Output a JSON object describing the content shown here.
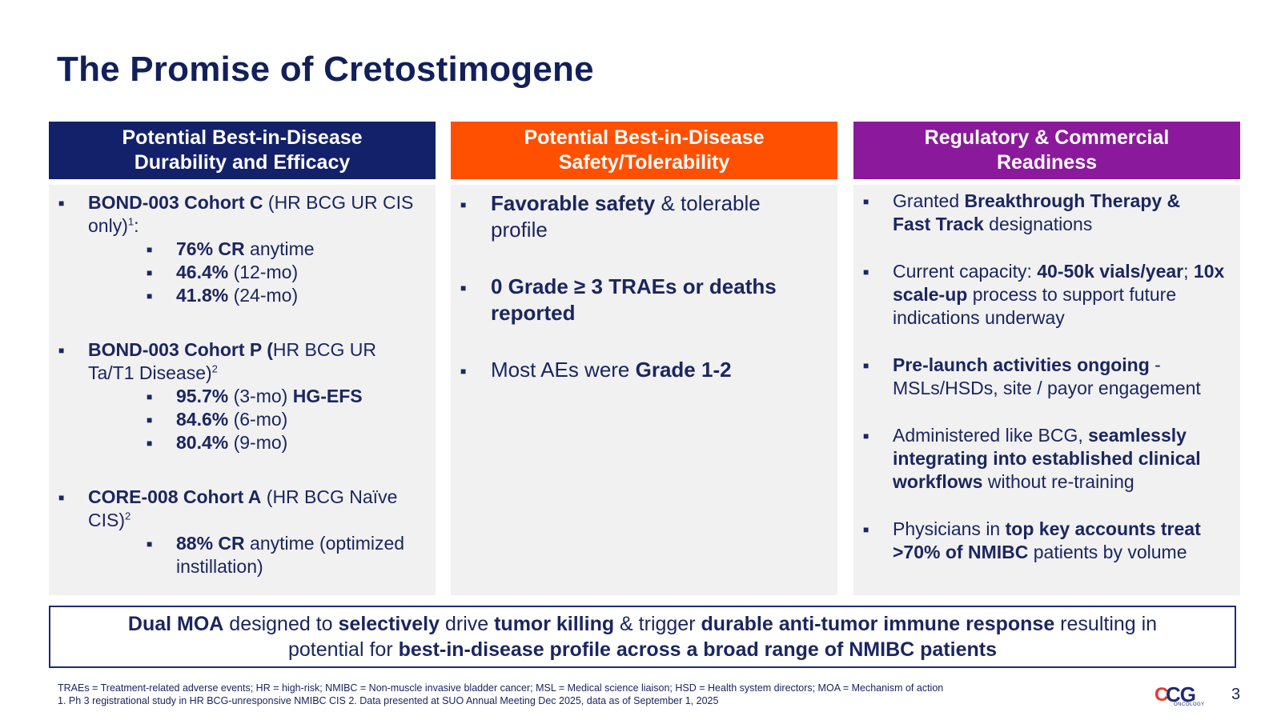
{
  "slide": {
    "title": "The Promise of Cretostimogene",
    "page_number": "3"
  },
  "colors": {
    "title": "#12205a",
    "header_navy": "#13216a",
    "header_orange": "#fe5000",
    "header_purple": "#8a1a9b",
    "panel_bg": "#f1f1f1",
    "text": "#1b2660"
  },
  "bullet_glyph": "■",
  "columns": [
    {
      "header_line1": "Potential Best-in-Disease",
      "header_line2": "Durability and Efficacy",
      "items": [
        {
          "bold": "BOND-003 Cohort C",
          "text": " (HR BCG UR CIS only)",
          "sup": "1",
          "tail": ":",
          "subs": [
            {
              "bold": "76% CR",
              "text": " anytime"
            },
            {
              "bold": "46.4%",
              "text": " (12-mo)"
            },
            {
              "bold": "41.8%",
              "text": " (24-mo)"
            }
          ]
        },
        {
          "bold": "BOND-003 Cohort P (",
          "text": "HR BCG UR Ta/T1 Disease)",
          "sup": "2",
          "subs": [
            {
              "bold": "95.7%",
              "text": " (3-mo) ",
              "bold2": "HG-EFS"
            },
            {
              "bold": "84.6%",
              "text": " (6-mo)"
            },
            {
              "bold": "80.4%",
              "text": " (9-mo)"
            }
          ]
        },
        {
          "bold": "CORE-008 Cohort A",
          "text": " (HR BCG Naïve CIS)",
          "sup": "2",
          "subs": [
            {
              "bold": "88% CR",
              "text": " anytime (optimized instillation)"
            }
          ]
        }
      ]
    },
    {
      "header_line1": "Potential Best-in-Disease",
      "header_line2": "Safety/Tolerability",
      "items": [
        {
          "bold": "Favorable safety",
          "text": " & tolerable profile"
        },
        {
          "bold": "0 Grade ≥ 3 TRAEs or deaths reported"
        },
        {
          "text": "Most AEs were ",
          "bold": "Grade 1-2"
        }
      ]
    },
    {
      "header_line1": "Regulatory & Commercial",
      "header_line2": "Readiness",
      "items": [
        {
          "t1": "Granted ",
          "b1": "Breakthrough Therapy &",
          "b2": "Fast Track",
          "t2": " designations"
        },
        {
          "t1": "Current capacity: ",
          "b1": "40-50k vials/year",
          "t2": "; ",
          "b2": "10x scale-up",
          "t3": " process to support future indications underway"
        },
        {
          "b1": "Pre-launch activities ongoing",
          "t1": " - MSLs/HSDs, site / payor engagement"
        },
        {
          "t1": "Administered like BCG, ",
          "b1": "seamlessly integrating into established clinical workflows",
          "t2": " without re-training"
        },
        {
          "t1": "Physicians in ",
          "b1": "top key accounts treat >70% of NMIBC",
          "t2": " patients by volume"
        }
      ]
    }
  ],
  "callout": {
    "b1": "Dual MOA",
    "t1": " designed to ",
    "b2": "selectively",
    "t2": " drive ",
    "b3": "tumor killing",
    "t3": " & trigger ",
    "b4": "durable anti-tumor immune response",
    "t4": " resulting in",
    "t5": "potential for ",
    "b5": "best-in-disease profile across a broad range of NMIBC patients"
  },
  "footnotes": {
    "abbreviations": "TRAEs = Treatment-related adverse events; HR = high-risk; NMIBC = Non-muscle invasive bladder cancer; MSL = Medical science liaison; HSD = Health system directors; MOA = Mechanism of action",
    "references": "1. Ph 3 registrational study in HR BCG-unresponsive NMIBC CIS  2. Data presented at SUO Annual Meeting Dec 2025, data as of September 1, 2025"
  },
  "logo": {
    "mark": "C",
    "wordmark": "CG",
    "subtext": "ONCOLOGY"
  }
}
